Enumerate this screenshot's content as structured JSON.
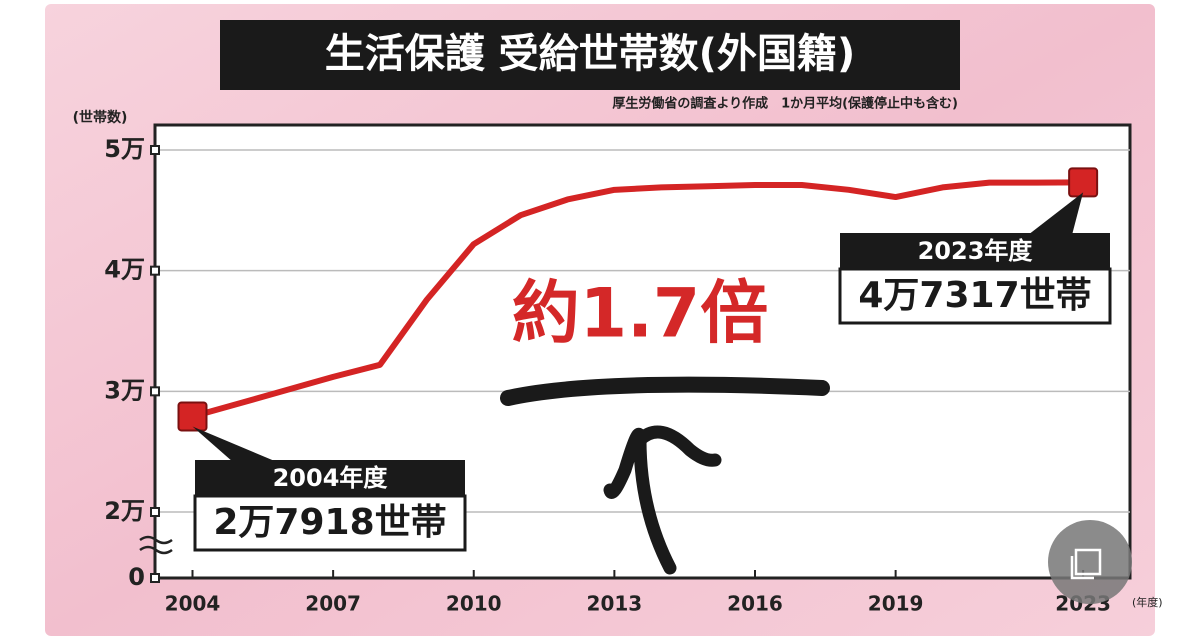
{
  "chart_data": {
    "type": "line",
    "title": "生活保護 受給世帯数(外国籍)",
    "subtitle": "厚生労働省の調査より作成　1か月平均(保護停止中も含む)",
    "y_unit": "(世帯数)",
    "x_unit": "(年度)",
    "x": [
      2004,
      2005,
      2006,
      2007,
      2008,
      2009,
      2010,
      2011,
      2012,
      2013,
      2014,
      2015,
      2016,
      2017,
      2018,
      2019,
      2020,
      2021,
      2022,
      2023
    ],
    "series": [
      {
        "color": "#d42424",
        "values": [
          27918,
          29000,
          30100,
          31200,
          32200,
          37600,
          42200,
          44600,
          45900,
          46700,
          46900,
          47000,
          47100,
          47100,
          46700,
          46100,
          46900,
          47300,
          47300,
          47317
        ],
        "value_labels": [
          "2万7918世帯",
          null,
          null,
          null,
          null,
          null,
          null,
          null,
          null,
          null,
          null,
          null,
          null,
          null,
          null,
          null,
          null,
          null,
          null,
          "4万7317世帯"
        ],
        "period_labels": [
          "2004年度",
          null,
          null,
          null,
          null,
          null,
          null,
          null,
          null,
          null,
          null,
          null,
          null,
          null,
          null,
          null,
          null,
          null,
          null,
          "2023年度"
        ]
      }
    ],
    "annotation": "約1.7倍",
    "xlim": [
      2003.2,
      2024
    ],
    "xticks": [
      2004,
      2007,
      2010,
      2013,
      2016,
      2019,
      2023
    ],
    "ylim": [
      0,
      50000
    ],
    "yticks": [
      0,
      {
        "value": 20000,
        "label": "2万"
      },
      {
        "value": 30000,
        "label": "3万"
      },
      {
        "value": 40000,
        "label": "4万"
      },
      {
        "value": 50000,
        "label": "5万"
      }
    ],
    "grid": true
  }
}
